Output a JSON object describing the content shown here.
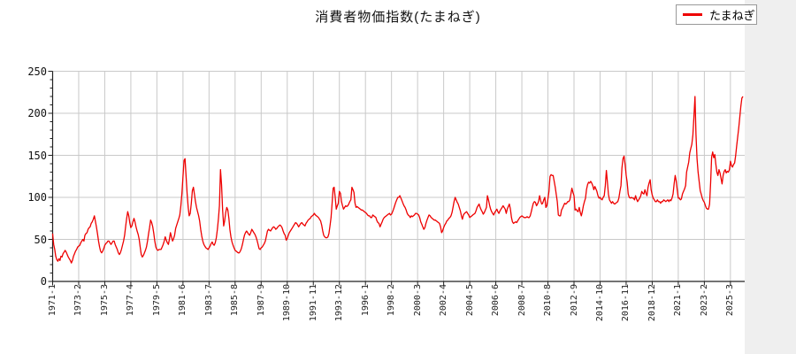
{
  "page": {
    "title": "消費者物価指数(たまねぎ)",
    "background_color": "#efefef",
    "card_color": "#ffffff"
  },
  "legend": {
    "label": "たまねぎ",
    "line_color": "#ee0000",
    "position": "top-right"
  },
  "chart_data": {
    "type": "line",
    "title": "消費者物価指数(たまねぎ)",
    "series_name": "たまねぎ",
    "line_color": "#ee0000",
    "grid": true,
    "legend_position": "top-right",
    "ylim": [
      0,
      250
    ],
    "y_ticks": [
      0,
      50,
      100,
      150,
      200,
      250
    ],
    "y_minor_tick_step": 10,
    "x_unit": "months, monthly CPI values starting 1971-01",
    "x_tick_interval_months": 25,
    "x_tick_labels": [
      "1971-1",
      "1973-2",
      "1975-3",
      "1977-4",
      "1979-5",
      "1981-6",
      "1983-7",
      "1985-8",
      "1987-9",
      "1989-10",
      "1991-11",
      "1993-12",
      "1996-1",
      "1998-2",
      "2000-3",
      "2002-4",
      "2004-5",
      "2006-6",
      "2008-7",
      "2010-8",
      "2012-9",
      "2014-10",
      "2016-11",
      "2018-12",
      "2021-1",
      "2023-2",
      "2025-3"
    ],
    "values": [
      57,
      44,
      38,
      30,
      26,
      24,
      27,
      25,
      30,
      29,
      33,
      35,
      37,
      35,
      32,
      29,
      27,
      25,
      22,
      25,
      30,
      33,
      36,
      38,
      41,
      42,
      43,
      46,
      48,
      50,
      48,
      55,
      57,
      58,
      62,
      64,
      65,
      69,
      71,
      74,
      78,
      72,
      65,
      57,
      48,
      41,
      36,
      34,
      36,
      39,
      43,
      45,
      46,
      48,
      48,
      46,
      44,
      46,
      48,
      48,
      44,
      41,
      38,
      34,
      32,
      34,
      38,
      43,
      48,
      55,
      65,
      75,
      83,
      78,
      70,
      64,
      66,
      71,
      75,
      71,
      65,
      60,
      56,
      50,
      41,
      32,
      29,
      31,
      34,
      37,
      41,
      48,
      57,
      64,
      73,
      70,
      65,
      57,
      48,
      41,
      38,
      37,
      38,
      38,
      38,
      41,
      44,
      48,
      53,
      49,
      46,
      44,
      50,
      58,
      53,
      48,
      51,
      55,
      63,
      67,
      71,
      75,
      79,
      90,
      105,
      125,
      144,
      146,
      125,
      104,
      88,
      78,
      81,
      93,
      108,
      112,
      104,
      95,
      88,
      83,
      78,
      72,
      62,
      54,
      48,
      44,
      42,
      40,
      39,
      38,
      40,
      42,
      45,
      47,
      44,
      43,
      46,
      52,
      62,
      75,
      90,
      133,
      115,
      85,
      66,
      72,
      82,
      88,
      85,
      75,
      62,
      53,
      47,
      43,
      40,
      37,
      36,
      35,
      34,
      34,
      36,
      39,
      44,
      50,
      55,
      58,
      60,
      58,
      56,
      55,
      58,
      62,
      60,
      58,
      56,
      53,
      49,
      44,
      39,
      38,
      40,
      41,
      43,
      45,
      48,
      54,
      60,
      62,
      61,
      60,
      62,
      64,
      65,
      64,
      62,
      63,
      65,
      66,
      67,
      66,
      64,
      60,
      57,
      55,
      49,
      51,
      55,
      58,
      60,
      62,
      64,
      66,
      68,
      70,
      69,
      67,
      65,
      67,
      69,
      70,
      68,
      67,
      66,
      69,
      71,
      73,
      74,
      75,
      77,
      78,
      79,
      81,
      79,
      78,
      77,
      76,
      74,
      72,
      67,
      60,
      55,
      53,
      52,
      52,
      53,
      57,
      66,
      76,
      93,
      111,
      112,
      100,
      86,
      90,
      93,
      107,
      105,
      95,
      90,
      86,
      88,
      90,
      89,
      90,
      92,
      95,
      97,
      112,
      109,
      106,
      93,
      88,
      89,
      88,
      87,
      86,
      85,
      85,
      84,
      83,
      82,
      81,
      79,
      78,
      78,
      76,
      76,
      79,
      78,
      77,
      76,
      72,
      70,
      69,
      65,
      68,
      71,
      74,
      76,
      77,
      78,
      79,
      80,
      81,
      79,
      80,
      83,
      86,
      90,
      94,
      97,
      100,
      100,
      102,
      99,
      96,
      93,
      90,
      88,
      85,
      81,
      79,
      78,
      76,
      78,
      77,
      78,
      79,
      81,
      81,
      80,
      79,
      76,
      71,
      68,
      65,
      62,
      64,
      69,
      73,
      76,
      79,
      78,
      76,
      75,
      74,
      73,
      73,
      72,
      71,
      70,
      69,
      65,
      58,
      60,
      64,
      67,
      69,
      72,
      73,
      75,
      76,
      78,
      82,
      88,
      95,
      100,
      97,
      94,
      92,
      88,
      84,
      78,
      74,
      79,
      81,
      82,
      83,
      81,
      79,
      76,
      77,
      78,
      79,
      80,
      81,
      84,
      88,
      90,
      92,
      88,
      85,
      83,
      80,
      82,
      85,
      88,
      102,
      97,
      91,
      86,
      83,
      81,
      79,
      82,
      84,
      86,
      83,
      81,
      84,
      86,
      88,
      90,
      88,
      86,
      81,
      86,
      89,
      92,
      86,
      76,
      71,
      69,
      70,
      71,
      70,
      72,
      74,
      76,
      77,
      78,
      77,
      76,
      76,
      76,
      77,
      76,
      76,
      78,
      83,
      88,
      93,
      95,
      94,
      90,
      92,
      95,
      102,
      96,
      92,
      93,
      97,
      100,
      88,
      90,
      98,
      107,
      125,
      127,
      126,
      126,
      119,
      112,
      103,
      95,
      79,
      78,
      78,
      85,
      87,
      90,
      93,
      92,
      93,
      95,
      95,
      97,
      104,
      111,
      106,
      102,
      85,
      86,
      84,
      83,
      88,
      82,
      78,
      83,
      90,
      95,
      99,
      109,
      115,
      118,
      117,
      119,
      117,
      114,
      109,
      113,
      110,
      107,
      102,
      99,
      100,
      98,
      97,
      100,
      102,
      114,
      132,
      119,
      104,
      97,
      95,
      93,
      95,
      93,
      92,
      93,
      94,
      95,
      99,
      107,
      114,
      135,
      146,
      149,
      139,
      126,
      118,
      104,
      100,
      99,
      100,
      99,
      99,
      97,
      102,
      98,
      95,
      97,
      99,
      102,
      107,
      105,
      104,
      109,
      105,
      102,
      112,
      117,
      121,
      109,
      103,
      99,
      97,
      95,
      95,
      97,
      95,
      95,
      93,
      95,
      95,
      97,
      96,
      95,
      96,
      97,
      95,
      97,
      96,
      99,
      104,
      116,
      126,
      120,
      109,
      99,
      99,
      97,
      98,
      104,
      107,
      110,
      114,
      130,
      136,
      142,
      153,
      158,
      163,
      174,
      196,
      220,
      175,
      146,
      130,
      119,
      108,
      104,
      99,
      96,
      94,
      90,
      87,
      86,
      86,
      92,
      118,
      148,
      154,
      147,
      151,
      140,
      130,
      126,
      133,
      129,
      123,
      116,
      126,
      131,
      133,
      129,
      131,
      130,
      133,
      143,
      138,
      136,
      139,
      141,
      149,
      161,
      172,
      183,
      196,
      208,
      218,
      220
    ]
  },
  "layout_colors": {
    "grid_color": "#c9c9c9",
    "axis_color": "#222222",
    "label_color": "#222222"
  }
}
